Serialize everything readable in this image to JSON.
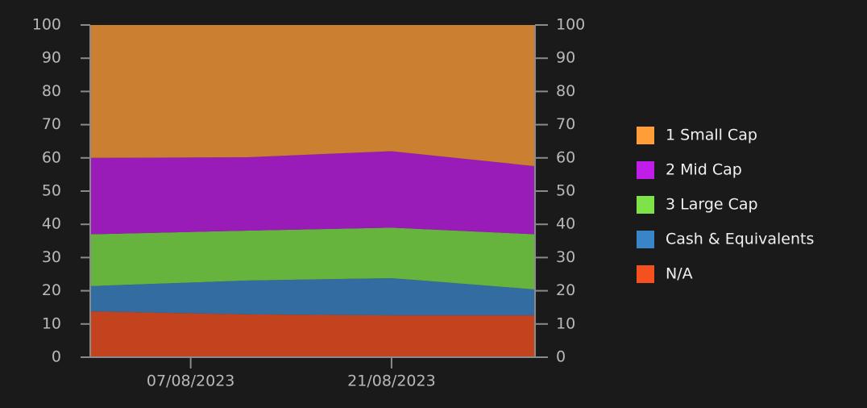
{
  "chart_data": {
    "type": "stacked_area",
    "x": [
      "2023-07-31",
      "2023-08-11",
      "2023-08-21",
      "2023-08-31"
    ],
    "xlim": [
      "2023-07-31",
      "2023-08-31"
    ],
    "xticks": [
      {
        "value": "2023-08-07",
        "label": "07/08/2023"
      },
      {
        "value": "2023-08-21",
        "label": "21/08/2023"
      }
    ],
    "ylim": [
      0,
      100
    ],
    "yticks": [
      0,
      10,
      20,
      30,
      40,
      50,
      60,
      70,
      80,
      90,
      100
    ],
    "y2lim": [
      0,
      100
    ],
    "y2ticks": [
      0,
      10,
      20,
      30,
      40,
      50,
      60,
      70,
      80,
      90,
      100
    ],
    "legend": "right",
    "series": [
      {
        "name": "1 Small Cap",
        "color": "#ff9d38",
        "values": [
          40,
          39.8,
          38,
          42.5
        ]
      },
      {
        "name": "2 Mid Cap",
        "color": "#c01de8",
        "values": [
          23,
          22.1,
          23,
          20.5
        ]
      },
      {
        "name": "3 Large Cap",
        "color": "#7de348",
        "values": [
          15.6,
          15.0,
          15.2,
          16.6
        ]
      },
      {
        "name": "Cash & Equivalents",
        "color": "#3a85c8",
        "values": [
          7.6,
          10.2,
          11.2,
          7.8
        ]
      },
      {
        "name": "N/A",
        "color": "#f5501e",
        "values": [
          13.8,
          12.9,
          12.6,
          12.6
        ]
      }
    ]
  }
}
